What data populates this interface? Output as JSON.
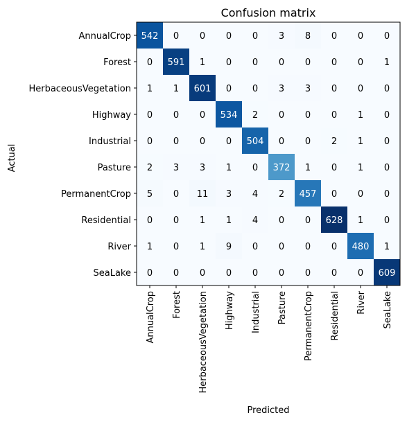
{
  "chart_data": {
    "type": "heatmap",
    "title": "Confusion matrix",
    "xlabel": "Predicted",
    "ylabel": "Actual",
    "x_categories": [
      "AnnualCrop",
      "Forest",
      "HerbaceousVegetation",
      "Highway",
      "Industrial",
      "Pasture",
      "PermanentCrop",
      "Residential",
      "River",
      "SeaLake"
    ],
    "y_categories": [
      "AnnualCrop",
      "Forest",
      "HerbaceousVegetation",
      "Highway",
      "Industrial",
      "Pasture",
      "PermanentCrop",
      "Residential",
      "River",
      "SeaLake"
    ],
    "values": [
      [
        542,
        0,
        0,
        0,
        0,
        3,
        8,
        0,
        0,
        0
      ],
      [
        0,
        591,
        1,
        0,
        0,
        0,
        0,
        0,
        0,
        1
      ],
      [
        1,
        1,
        601,
        0,
        0,
        3,
        3,
        0,
        0,
        0
      ],
      [
        0,
        0,
        0,
        534,
        2,
        0,
        0,
        0,
        1,
        0
      ],
      [
        0,
        0,
        0,
        0,
        504,
        0,
        0,
        2,
        1,
        0
      ],
      [
        2,
        3,
        3,
        1,
        0,
        372,
        1,
        0,
        1,
        0
      ],
      [
        5,
        0,
        11,
        3,
        4,
        2,
        457,
        0,
        0,
        0
      ],
      [
        0,
        0,
        1,
        1,
        4,
        0,
        0,
        628,
        1,
        0
      ],
      [
        1,
        0,
        1,
        9,
        0,
        0,
        0,
        0,
        480,
        1
      ],
      [
        0,
        0,
        0,
        0,
        0,
        0,
        0,
        0,
        0,
        609
      ]
    ],
    "vmin": 0,
    "vmax": 628,
    "colormap": "Blues",
    "colormap_low": "#f7fbff",
    "colormap_high": "#08306b",
    "text_color_light": "#ffffff",
    "text_color_dark": "#000000",
    "grid": false,
    "legend": "none"
  }
}
